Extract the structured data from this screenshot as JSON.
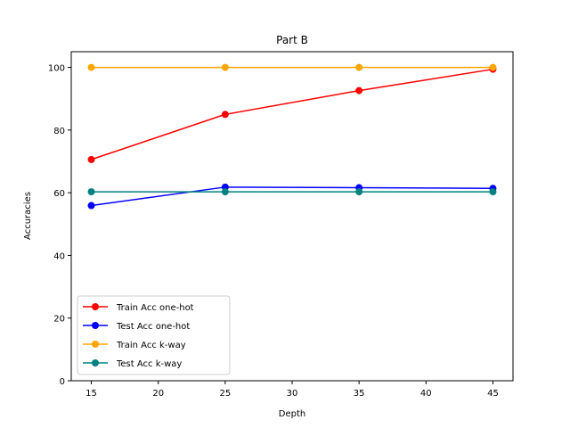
{
  "chart_data": {
    "type": "line",
    "title": "Part B",
    "xlabel": "Depth",
    "ylabel": "Accuracies",
    "x": [
      15,
      25,
      35,
      45
    ],
    "xlim": [
      13.5,
      46.5
    ],
    "ylim": [
      0,
      105
    ],
    "xticks": [
      "15",
      "20",
      "25",
      "30",
      "35",
      "40",
      "45"
    ],
    "yticks": [
      "0",
      "20",
      "40",
      "60",
      "80",
      "100"
    ],
    "grid": false,
    "legend_position": "bottom-left",
    "series": [
      {
        "name": "Train Acc one-hot",
        "color": "#ff0000",
        "marker": "circle",
        "values": [
          70.6,
          85.0,
          92.6,
          99.4
        ]
      },
      {
        "name": "Test Acc one-hot",
        "color": "#0000ff",
        "marker": "circle",
        "values": [
          55.9,
          61.8,
          61.6,
          61.4
        ]
      },
      {
        "name": "Train Acc k-way",
        "color": "#ffa500",
        "marker": "circle",
        "values": [
          100,
          100,
          100,
          100
        ]
      },
      {
        "name": "Test Acc k-way",
        "color": "#008080",
        "marker": "circle",
        "values": [
          60.3,
          60.3,
          60.3,
          60.3
        ]
      }
    ]
  }
}
